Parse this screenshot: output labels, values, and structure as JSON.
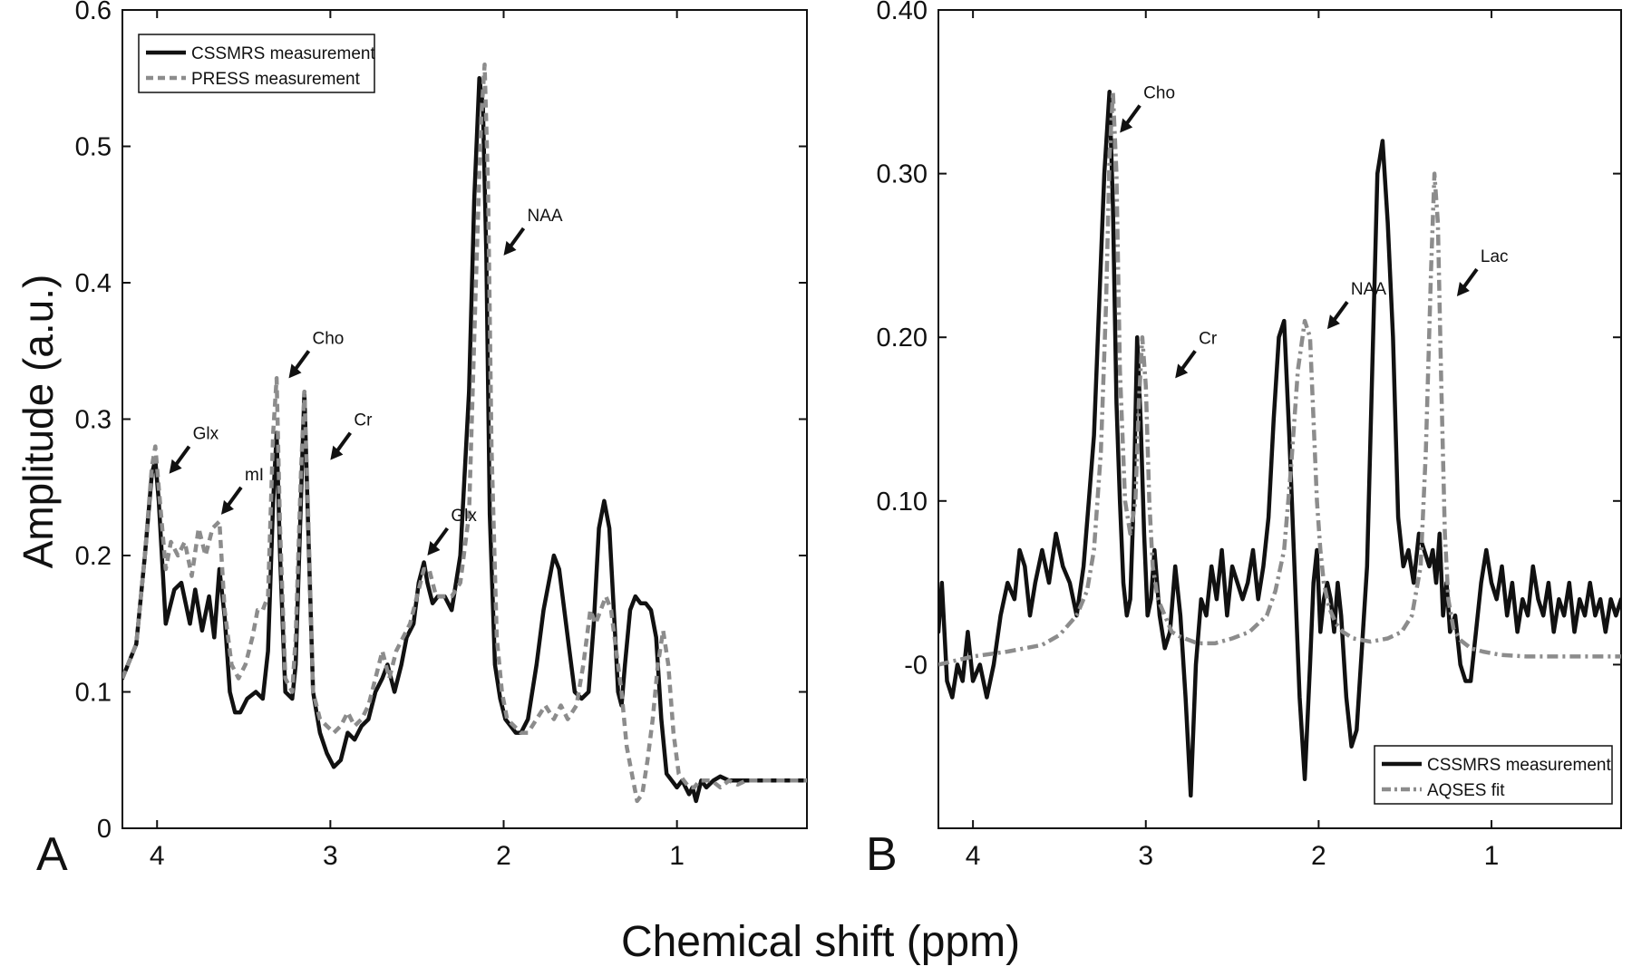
{
  "figure": {
    "ylabel": "Amplitude (a.u.)",
    "xlabel": "Chemical shift (ppm)"
  },
  "chart_data": [
    {
      "panel_label": "A",
      "type": "line",
      "x_reversed": true,
      "xlim": [
        4.2,
        0.25
      ],
      "ylim": [
        0,
        0.6
      ],
      "xticks": [
        4,
        3,
        2,
        1
      ],
      "xtick_labels": [
        "4",
        "3",
        "2",
        "1"
      ],
      "yticks": [
        0,
        0.1,
        0.2,
        0.3,
        0.4,
        0.5,
        0.6
      ],
      "ytick_labels": [
        "0",
        "0.1",
        "0.2",
        "0.3",
        "0.4",
        "0.5",
        "0.6"
      ],
      "grid": false,
      "legend": {
        "position": "top-left"
      },
      "series": [
        {
          "name": "CSSMRS measurement",
          "style": "solid",
          "color": "#111111",
          "x": [
            4.2,
            4.12,
            4.07,
            4.03,
            4.01,
            3.99,
            3.95,
            3.9,
            3.86,
            3.81,
            3.78,
            3.74,
            3.7,
            3.67,
            3.64,
            3.61,
            3.58,
            3.55,
            3.52,
            3.48,
            3.43,
            3.39,
            3.36,
            3.33,
            3.31,
            3.29,
            3.26,
            3.22,
            3.2,
            3.17,
            3.15,
            3.13,
            3.1,
            3.06,
            3.02,
            2.98,
            2.94,
            2.9,
            2.86,
            2.82,
            2.78,
            2.74,
            2.7,
            2.67,
            2.63,
            2.59,
            2.56,
            2.52,
            2.49,
            2.46,
            2.44,
            2.41,
            2.38,
            2.34,
            2.3,
            2.25,
            2.2,
            2.17,
            2.14,
            2.12,
            2.1,
            2.08,
            2.05,
            2.02,
            1.99,
            1.96,
            1.93,
            1.9,
            1.86,
            1.81,
            1.77,
            1.74,
            1.71,
            1.68,
            1.65,
            1.62,
            1.59,
            1.55,
            1.51,
            1.48,
            1.45,
            1.42,
            1.39,
            1.36,
            1.34,
            1.32,
            1.3,
            1.27,
            1.24,
            1.21,
            1.18,
            1.15,
            1.12,
            1.09,
            1.06,
            1.03,
            1.0,
            0.97,
            0.95,
            0.93,
            0.91,
            0.89,
            0.86,
            0.83,
            0.79,
            0.75,
            0.7,
            0.65,
            0.6,
            0.55,
            0.5,
            0.45,
            0.4,
            0.35,
            0.3,
            0.25
          ],
          "y": [
            0.11,
            0.135,
            0.2,
            0.26,
            0.27,
            0.24,
            0.15,
            0.175,
            0.18,
            0.15,
            0.175,
            0.145,
            0.17,
            0.14,
            0.19,
            0.155,
            0.1,
            0.085,
            0.085,
            0.095,
            0.1,
            0.095,
            0.13,
            0.24,
            0.29,
            0.2,
            0.1,
            0.095,
            0.12,
            0.24,
            0.32,
            0.23,
            0.1,
            0.07,
            0.055,
            0.045,
            0.05,
            0.07,
            0.065,
            0.075,
            0.08,
            0.1,
            0.11,
            0.12,
            0.1,
            0.12,
            0.14,
            0.15,
            0.18,
            0.195,
            0.18,
            0.165,
            0.17,
            0.17,
            0.16,
            0.2,
            0.32,
            0.46,
            0.55,
            0.53,
            0.42,
            0.23,
            0.12,
            0.095,
            0.08,
            0.075,
            0.07,
            0.07,
            0.08,
            0.12,
            0.16,
            0.18,
            0.2,
            0.19,
            0.16,
            0.13,
            0.1,
            0.095,
            0.1,
            0.15,
            0.22,
            0.24,
            0.22,
            0.15,
            0.1,
            0.09,
            0.12,
            0.16,
            0.17,
            0.165,
            0.165,
            0.16,
            0.14,
            0.08,
            0.04,
            0.035,
            0.03,
            0.035,
            0.03,
            0.025,
            0.03,
            0.02,
            0.035,
            0.03,
            0.035,
            0.038,
            0.035,
            0.035,
            0.035,
            0.035,
            0.035,
            0.035,
            0.035,
            0.035,
            0.035,
            0.035
          ]
        },
        {
          "name": "PRESS measurement",
          "style": "dashed",
          "color": "#8c8c8c",
          "x": [
            4.2,
            4.12,
            4.07,
            4.03,
            4.01,
            3.99,
            3.95,
            3.92,
            3.88,
            3.84,
            3.8,
            3.76,
            3.72,
            3.68,
            3.64,
            3.61,
            3.57,
            3.53,
            3.49,
            3.45,
            3.42,
            3.39,
            3.36,
            3.33,
            3.31,
            3.29,
            3.26,
            3.22,
            3.2,
            3.17,
            3.15,
            3.13,
            3.1,
            3.06,
            3.02,
            2.98,
            2.94,
            2.9,
            2.86,
            2.82,
            2.78,
            2.74,
            2.7,
            2.66,
            2.62,
            2.58,
            2.54,
            2.5,
            2.46,
            2.43,
            2.39,
            2.35,
            2.3,
            2.25,
            2.2,
            2.16,
            2.13,
            2.11,
            2.09,
            2.07,
            2.04,
            2.01,
            1.98,
            1.94,
            1.9,
            1.86,
            1.81,
            1.76,
            1.71,
            1.67,
            1.63,
            1.58,
            1.54,
            1.5,
            1.47,
            1.44,
            1.41,
            1.38,
            1.35,
            1.32,
            1.29,
            1.26,
            1.23,
            1.2,
            1.17,
            1.14,
            1.11,
            1.08,
            1.05,
            1.02,
            0.99,
            0.96,
            0.93,
            0.9,
            0.87,
            0.84,
            0.8,
            0.75,
            0.7,
            0.65,
            0.6,
            0.55,
            0.5,
            0.45,
            0.4,
            0.35,
            0.3,
            0.25
          ],
          "y": [
            0.11,
            0.135,
            0.2,
            0.265,
            0.28,
            0.25,
            0.19,
            0.21,
            0.2,
            0.21,
            0.185,
            0.22,
            0.2,
            0.22,
            0.225,
            0.16,
            0.12,
            0.11,
            0.12,
            0.14,
            0.16,
            0.16,
            0.17,
            0.29,
            0.33,
            0.22,
            0.11,
            0.1,
            0.14,
            0.26,
            0.32,
            0.24,
            0.1,
            0.08,
            0.075,
            0.07,
            0.075,
            0.085,
            0.075,
            0.08,
            0.09,
            0.11,
            0.13,
            0.11,
            0.13,
            0.14,
            0.15,
            0.17,
            0.19,
            0.19,
            0.17,
            0.17,
            0.17,
            0.18,
            0.23,
            0.4,
            0.52,
            0.56,
            0.47,
            0.28,
            0.14,
            0.1,
            0.08,
            0.075,
            0.07,
            0.07,
            0.08,
            0.09,
            0.08,
            0.09,
            0.08,
            0.09,
            0.12,
            0.16,
            0.15,
            0.16,
            0.17,
            0.16,
            0.13,
            0.1,
            0.06,
            0.04,
            0.02,
            0.025,
            0.05,
            0.08,
            0.12,
            0.145,
            0.12,
            0.07,
            0.04,
            0.035,
            0.03,
            0.03,
            0.035,
            0.035,
            0.035,
            0.03,
            0.035,
            0.032,
            0.035,
            0.035,
            0.035,
            0.035,
            0.035,
            0.035,
            0.035,
            0.035
          ]
        }
      ],
      "annotations": [
        {
          "text": "Glx",
          "arrow_tip": [
            3.93,
            0.26
          ]
        },
        {
          "text": "mI",
          "arrow_tip": [
            3.63,
            0.23
          ]
        },
        {
          "text": "Cho",
          "arrow_tip": [
            3.24,
            0.33
          ]
        },
        {
          "text": "Cr",
          "arrow_tip": [
            3.0,
            0.27
          ]
        },
        {
          "text": "Glx",
          "arrow_tip": [
            2.44,
            0.2
          ]
        },
        {
          "text": "NAA",
          "arrow_tip": [
            2.0,
            0.42
          ]
        }
      ]
    },
    {
      "panel_label": "B",
      "type": "line",
      "x_reversed": true,
      "xlim": [
        4.2,
        0.25
      ],
      "ylim": [
        -0.1,
        0.4
      ],
      "xticks": [
        4,
        3,
        2,
        1
      ],
      "xtick_labels": [
        "4",
        "3",
        "2",
        "1"
      ],
      "yticks": [
        0,
        0.1,
        0.2,
        0.3,
        0.4
      ],
      "ytick_labels": [
        "-0",
        "0.10",
        "0.20",
        "0.30",
        "0.40"
      ],
      "grid": false,
      "legend": {
        "position": "bottom-right"
      },
      "series": [
        {
          "name": "CSSMRS measurement",
          "style": "solid",
          "color": "#111111",
          "x": [
            4.2,
            4.18,
            4.15,
            4.12,
            4.09,
            4.06,
            4.03,
            4.0,
            3.96,
            3.92,
            3.88,
            3.84,
            3.8,
            3.76,
            3.73,
            3.7,
            3.67,
            3.64,
            3.6,
            3.56,
            3.52,
            3.48,
            3.44,
            3.4,
            3.36,
            3.33,
            3.3,
            3.27,
            3.24,
            3.21,
            3.19,
            3.17,
            3.15,
            3.13,
            3.11,
            3.09,
            3.07,
            3.05,
            3.03,
            3.01,
            2.99,
            2.97,
            2.95,
            2.92,
            2.89,
            2.86,
            2.83,
            2.8,
            2.77,
            2.74,
            2.71,
            2.68,
            2.65,
            2.62,
            2.59,
            2.56,
            2.53,
            2.5,
            2.47,
            2.44,
            2.41,
            2.38,
            2.35,
            2.32,
            2.29,
            2.26,
            2.23,
            2.2,
            2.17,
            2.14,
            2.11,
            2.08,
            2.05,
            2.03,
            2.01,
            1.99,
            1.97,
            1.95,
            1.93,
            1.91,
            1.89,
            1.87,
            1.84,
            1.81,
            1.78,
            1.75,
            1.72,
            1.69,
            1.66,
            1.63,
            1.6,
            1.57,
            1.54,
            1.51,
            1.48,
            1.45,
            1.42,
            1.39,
            1.36,
            1.34,
            1.32,
            1.3,
            1.28,
            1.26,
            1.24,
            1.21,
            1.18,
            1.15,
            1.12,
            1.09,
            1.06,
            1.03,
            1.0,
            0.97,
            0.94,
            0.91,
            0.88,
            0.85,
            0.82,
            0.79,
            0.76,
            0.73,
            0.7,
            0.67,
            0.64,
            0.61,
            0.58,
            0.55,
            0.52,
            0.49,
            0.46,
            0.43,
            0.4,
            0.37,
            0.34,
            0.31,
            0.28,
            0.25
          ],
          "y": [
            0.02,
            0.05,
            -0.01,
            -0.02,
            0.0,
            -0.01,
            0.02,
            -0.01,
            0.0,
            -0.02,
            0.0,
            0.03,
            0.05,
            0.04,
            0.07,
            0.06,
            0.03,
            0.05,
            0.07,
            0.05,
            0.08,
            0.06,
            0.05,
            0.03,
            0.06,
            0.1,
            0.14,
            0.22,
            0.3,
            0.35,
            0.28,
            0.16,
            0.1,
            0.05,
            0.03,
            0.04,
            0.1,
            0.2,
            0.15,
            0.08,
            0.03,
            0.04,
            0.07,
            0.03,
            0.01,
            0.02,
            0.06,
            0.03,
            -0.02,
            -0.08,
            0.0,
            0.04,
            0.03,
            0.06,
            0.04,
            0.07,
            0.03,
            0.06,
            0.05,
            0.04,
            0.05,
            0.07,
            0.04,
            0.06,
            0.09,
            0.15,
            0.2,
            0.21,
            0.14,
            0.06,
            -0.02,
            -0.07,
            0.0,
            0.05,
            0.07,
            0.02,
            0.04,
            0.05,
            0.04,
            0.02,
            0.05,
            0.03,
            -0.02,
            -0.05,
            -0.04,
            0.01,
            0.06,
            0.18,
            0.3,
            0.32,
            0.27,
            0.2,
            0.09,
            0.06,
            0.07,
            0.05,
            0.08,
            0.07,
            0.06,
            0.07,
            0.05,
            0.08,
            0.03,
            0.05,
            0.02,
            0.03,
            0.0,
            -0.01,
            -0.01,
            0.02,
            0.05,
            0.07,
            0.05,
            0.04,
            0.06,
            0.03,
            0.05,
            0.02,
            0.04,
            0.03,
            0.06,
            0.04,
            0.03,
            0.05,
            0.02,
            0.04,
            0.03,
            0.05,
            0.02,
            0.04,
            0.03,
            0.05,
            0.03,
            0.04,
            0.02,
            0.04,
            0.03,
            0.04
          ],
          "x_dense_override": null
        },
        {
          "name": "AQSES fit",
          "style": "dashdot",
          "color": "#8c8c8c",
          "x": [
            4.2,
            4.0,
            3.8,
            3.6,
            3.5,
            3.4,
            3.34,
            3.3,
            3.26,
            3.23,
            3.21,
            3.19,
            3.17,
            3.15,
            3.12,
            3.09,
            3.06,
            3.04,
            3.02,
            3.0,
            2.98,
            2.96,
            2.93,
            2.89,
            2.85,
            2.8,
            2.7,
            2.6,
            2.5,
            2.4,
            2.3,
            2.25,
            2.2,
            2.16,
            2.12,
            2.08,
            2.05,
            2.03,
            2.01,
            1.99,
            1.97,
            1.94,
            1.9,
            1.86,
            1.8,
            1.7,
            1.6,
            1.52,
            1.46,
            1.41,
            1.38,
            1.35,
            1.33,
            1.31,
            1.29,
            1.27,
            1.25,
            1.22,
            1.18,
            1.12,
            1.05,
            0.95,
            0.8,
            0.6,
            0.4,
            0.25
          ],
          "y": [
            0.0,
            0.005,
            0.008,
            0.012,
            0.018,
            0.03,
            0.045,
            0.07,
            0.13,
            0.22,
            0.31,
            0.35,
            0.3,
            0.18,
            0.1,
            0.08,
            0.1,
            0.16,
            0.2,
            0.17,
            0.1,
            0.06,
            0.04,
            0.03,
            0.02,
            0.017,
            0.013,
            0.013,
            0.016,
            0.02,
            0.03,
            0.045,
            0.07,
            0.12,
            0.18,
            0.21,
            0.2,
            0.15,
            0.1,
            0.07,
            0.05,
            0.035,
            0.025,
            0.02,
            0.016,
            0.014,
            0.016,
            0.02,
            0.03,
            0.06,
            0.13,
            0.24,
            0.3,
            0.27,
            0.17,
            0.08,
            0.04,
            0.022,
            0.015,
            0.01,
            0.008,
            0.006,
            0.005,
            0.005,
            0.005,
            0.005
          ]
        }
      ],
      "annotations": [
        {
          "text": "Cho",
          "arrow_tip": [
            3.15,
            0.325
          ]
        },
        {
          "text": "Cr",
          "arrow_tip": [
            2.83,
            0.175
          ]
        },
        {
          "text": "NAA",
          "arrow_tip": [
            1.95,
            0.205
          ]
        },
        {
          "text": "Lac",
          "arrow_tip": [
            1.2,
            0.225
          ]
        }
      ]
    }
  ]
}
